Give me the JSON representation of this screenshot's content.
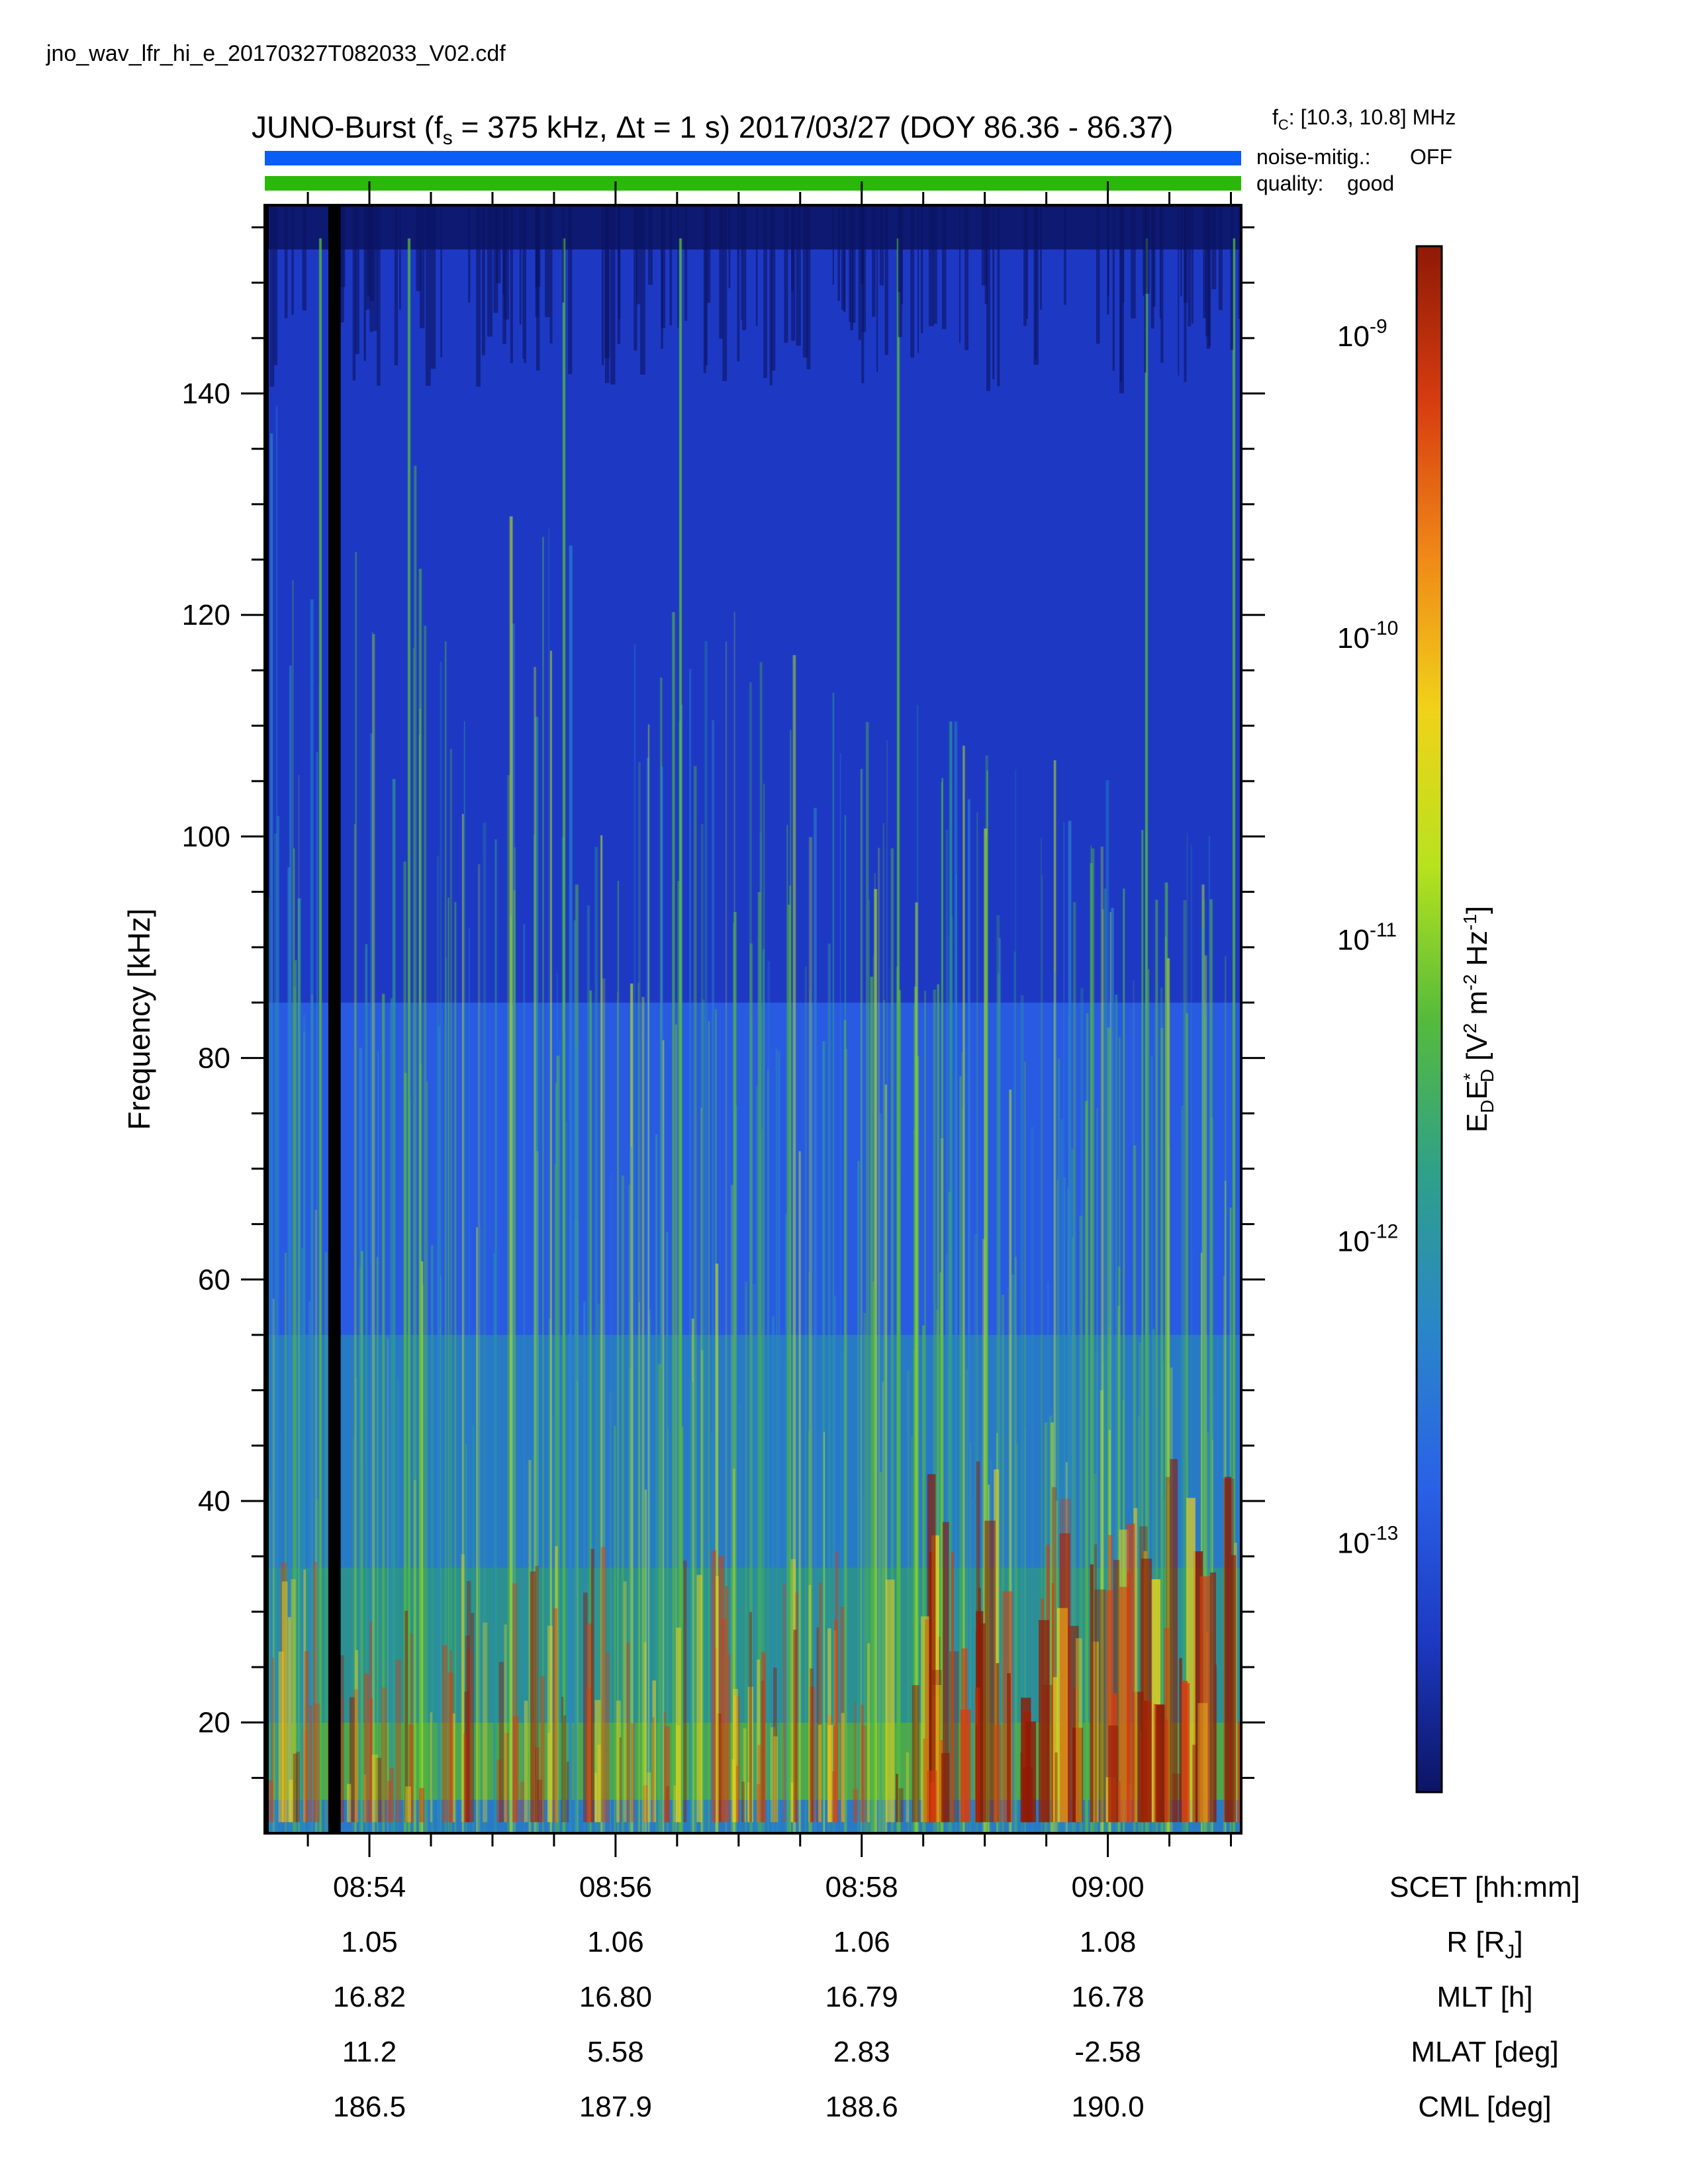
{
  "filename": "jno_wav_lfr_hi_e_20170327T082033_V02.cdf",
  "title": {
    "prefix": "JUNO-Burst (f",
    "fs_sub": "s",
    "mid": " = 375 kHz, Δt = 1 s)  2017/03/27 (DOY 86.36 - 86.37)"
  },
  "fc": {
    "label": "f",
    "sub": "C",
    "value": ": [10.3, 10.8] MHz"
  },
  "noise_mitigation": {
    "label": "noise-mitig.:",
    "value": "OFF",
    "color": "#1a66ee"
  },
  "quality": {
    "label": "quality:",
    "value": "good",
    "color": "#33bb00"
  },
  "colors": {
    "noise_bar": "#0a5ef5",
    "quality_bar": "#2ab80a"
  },
  "chart_data": {
    "type": "heatmap",
    "title": "JUNO-Burst (fs = 375 kHz, Δt = 1 s)  2017/03/27 (DOY 86.36 - 86.37)",
    "ylabel": "Frequency [kHz]",
    "ylim": [
      10,
      157
    ],
    "yticks": [
      20,
      40,
      60,
      80,
      100,
      120,
      140
    ],
    "xlabel": "SCET [hh:mm]",
    "xlim": [
      "08:53:09",
      "09:01:05"
    ],
    "xticks": [
      "08:54",
      "08:56",
      "08:58",
      "09:00"
    ],
    "ephemeris": [
      {
        "label": "SCET [hh:mm]",
        "values": [
          "08:54",
          "08:56",
          "08:58",
          "09:00"
        ]
      },
      {
        "label": "R [R",
        "label_sub": "J",
        "label_end": "]",
        "values": [
          "1.05",
          "1.06",
          "1.06",
          "1.08"
        ]
      },
      {
        "label": "MLT [h]",
        "values": [
          "16.82",
          "16.80",
          "16.79",
          "16.78"
        ]
      },
      {
        "label": "MLAT [deg]",
        "values": [
          "11.2",
          "5.58",
          "2.83",
          "-2.58"
        ]
      },
      {
        "label": "CML [deg]",
        "values": [
          "186.5",
          "187.9",
          "188.6",
          "190.0"
        ]
      }
    ],
    "colorbar": {
      "quantity": "E_D E*_D [V^2 m^-2 Hz^-1]",
      "scale": "log",
      "range": [
        1.5e-14,
        2e-09
      ],
      "ticks": [
        {
          "base": "10",
          "exp": "-9"
        },
        {
          "base": "10",
          "exp": "-10"
        },
        {
          "base": "10",
          "exp": "-11"
        },
        {
          "base": "10",
          "exp": "-12"
        },
        {
          "base": "10",
          "exp": "-13"
        }
      ],
      "colormap": [
        "#0c1463",
        "#1d3ac4",
        "#2a62e6",
        "#2a86c8",
        "#2fa08a",
        "#55bb3c",
        "#b8e21e",
        "#f0d21a",
        "#f08818",
        "#d63c10",
        "#8e1a06"
      ]
    },
    "data_gap": {
      "start": "08:53:40",
      "end": "08:53:46"
    },
    "description_of_intensity": "Broadband emission strongest below ~40 kHz, intensifying after 08:58; vertical striations throughout."
  }
}
